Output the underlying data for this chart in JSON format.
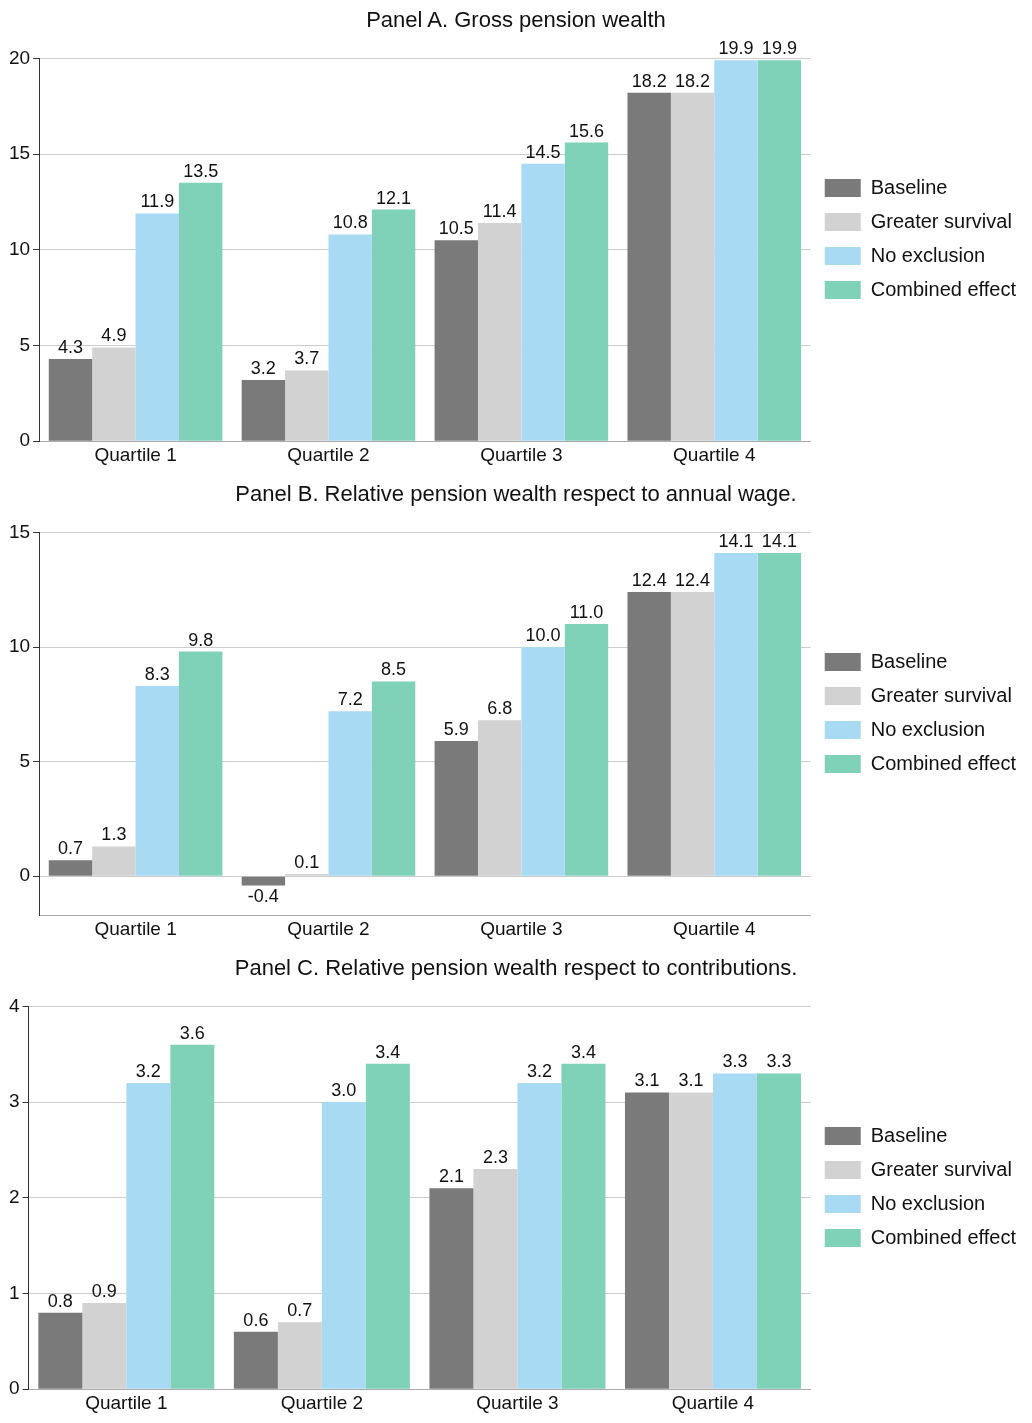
{
  "chart_data": [
    {
      "type": "bar",
      "title": "Panel A. Gross pension wealth",
      "categories": [
        "Quartile 1",
        "Quartile 2",
        "Quartile 3",
        "Quartile 4"
      ],
      "ylim": [
        0,
        20
      ],
      "yticks": [
        0,
        5,
        10,
        15,
        20
      ],
      "grid": "y",
      "legend": "right",
      "series": [
        {
          "name": "Baseline",
          "color": "#7a7a7a",
          "values": [
            4.3,
            3.2,
            10.5,
            18.2
          ],
          "value_labels": [
            "4.3",
            "3.2",
            "10.5",
            "18.2"
          ]
        },
        {
          "name": "Greater survival",
          "color": "#d2d2d2",
          "values": [
            4.9,
            3.7,
            11.4,
            18.2
          ],
          "value_labels": [
            "4.9",
            "3.7",
            "11.4",
            "18.2"
          ]
        },
        {
          "name": "No exclusion",
          "color": "#a9daf3",
          "values": [
            11.9,
            10.8,
            14.5,
            19.9
          ],
          "value_labels": [
            "11.9",
            "10.8",
            "14.5",
            "19.9"
          ]
        },
        {
          "name": "Combined effect",
          "color": "#7fd1b7",
          "values": [
            13.5,
            12.1,
            15.6,
            19.9
          ],
          "value_labels": [
            "13.5",
            "12.1",
            "15.6",
            "19.9"
          ]
        }
      ]
    },
    {
      "type": "bar",
      "title": "Panel B. Relative pension wealth respect to annual wage.",
      "categories": [
        "Quartile 1",
        "Quartile 2",
        "Quartile 3",
        "Quartile 4"
      ],
      "ylim": [
        -1.7,
        15
      ],
      "yticks": [
        0,
        5,
        10,
        15
      ],
      "grid": "y",
      "legend": "right",
      "series": [
        {
          "name": "Baseline",
          "color": "#7a7a7a",
          "values": [
            0.7,
            -0.4,
            5.9,
            12.4
          ],
          "value_labels": [
            "0.7",
            "-0.4",
            "5.9",
            "12.4"
          ]
        },
        {
          "name": "Greater survival",
          "color": "#d2d2d2",
          "values": [
            1.3,
            0.1,
            6.8,
            12.4
          ],
          "value_labels": [
            "1.3",
            "0.1",
            "6.8",
            "12.4"
          ]
        },
        {
          "name": "No exclusion",
          "color": "#a9daf3",
          "values": [
            8.3,
            7.2,
            10.0,
            14.1
          ],
          "value_labels": [
            "8.3",
            "7.2",
            "10.0",
            "14.1"
          ]
        },
        {
          "name": "Combined effect",
          "color": "#7fd1b7",
          "values": [
            9.8,
            8.5,
            11.0,
            14.1
          ],
          "value_labels": [
            "9.8",
            "8.5",
            "11.0",
            "14.1"
          ]
        }
      ]
    },
    {
      "type": "bar",
      "title": "Panel C. Relative pension wealth respect to contributions.",
      "categories": [
        "Quartile 1",
        "Quartile 2",
        "Quartile 3",
        "Quartile 4"
      ],
      "ylim": [
        0,
        4
      ],
      "yticks": [
        0,
        1,
        2,
        3,
        4
      ],
      "grid": "y",
      "legend": "right",
      "series": [
        {
          "name": "Baseline",
          "color": "#7a7a7a",
          "values": [
            0.8,
            0.6,
            2.1,
            3.1
          ],
          "value_labels": [
            "0.8",
            "0.6",
            "2.1",
            "3.1"
          ]
        },
        {
          "name": "Greater survival",
          "color": "#d2d2d2",
          "values": [
            0.9,
            0.7,
            2.3,
            3.1
          ],
          "value_labels": [
            "0.9",
            "0.7",
            "2.3",
            "3.1"
          ]
        },
        {
          "name": "No exclusion",
          "color": "#a9daf3",
          "values": [
            3.2,
            3.0,
            3.2,
            3.3
          ],
          "value_labels": [
            "3.2",
            "3.0",
            "3.2",
            "3.3"
          ]
        },
        {
          "name": "Combined effect",
          "color": "#7fd1b7",
          "values": [
            3.6,
            3.4,
            3.4,
            3.3
          ],
          "value_labels": [
            "3.6",
            "3.4",
            "3.4",
            "3.3"
          ]
        }
      ]
    }
  ]
}
